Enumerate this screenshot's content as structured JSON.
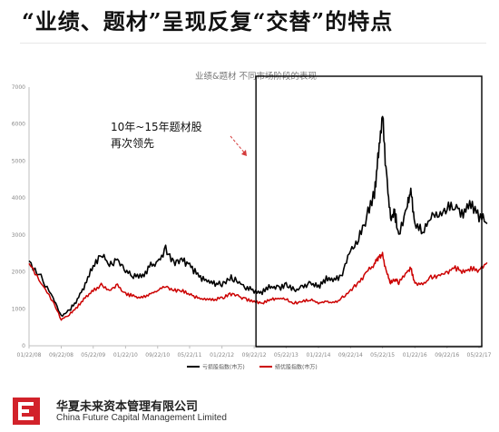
{
  "slide": {
    "title": "“业绩、题材”呈现反复“交替”的特点"
  },
  "chart_data": {
    "type": "line",
    "title": "业绩&题材 不同市场阶段的表现",
    "ylim": [
      0,
      7000
    ],
    "yticks": [
      0,
      1000,
      2000,
      3000,
      4000,
      5000,
      6000,
      7000
    ],
    "xticks": [
      "01/22/08",
      "09/22/08",
      "05/22/09",
      "01/22/10",
      "09/22/10",
      "05/22/11",
      "01/22/12",
      "09/22/12",
      "05/22/13",
      "01/22/14",
      "09/22/14",
      "05/22/15",
      "01/22/16",
      "09/22/16",
      "05/22/17"
    ],
    "x": [
      "01/22/08",
      "04/22/08",
      "07/22/08",
      "09/22/08",
      "11/22/08",
      "01/22/09",
      "03/22/09",
      "05/22/09",
      "07/22/09",
      "09/22/09",
      "11/22/09",
      "01/22/10",
      "03/22/10",
      "05/22/10",
      "07/22/10",
      "09/22/10",
      "11/22/10",
      "01/22/11",
      "03/22/11",
      "05/22/11",
      "07/22/11",
      "09/22/11",
      "11/22/11",
      "01/22/12",
      "03/22/12",
      "05/22/12",
      "07/22/12",
      "09/22/12",
      "11/22/12",
      "01/22/13",
      "03/22/13",
      "05/22/13",
      "07/22/13",
      "09/22/13",
      "11/22/13",
      "01/22/14",
      "03/22/14",
      "05/22/14",
      "07/22/14",
      "09/22/14",
      "11/22/14",
      "01/22/15",
      "03/22/15",
      "04/22/15",
      "05/22/15",
      "06/22/15",
      "07/22/15",
      "08/22/15",
      "09/22/15",
      "11/22/15",
      "12/22/15",
      "01/22/16",
      "03/22/16",
      "05/22/16",
      "07/22/16",
      "09/22/16",
      "11/22/16",
      "01/22/17",
      "03/22/17",
      "05/22/17",
      "07/22/17"
    ],
    "series": [
      {
        "name": "亏损股指数(市万)",
        "color": "#000000",
        "values": [
          2300,
          1850,
          1300,
          800,
          950,
          1250,
          1650,
          2150,
          2500,
          2200,
          2350,
          2000,
          1900,
          1850,
          2150,
          2250,
          2600,
          2250,
          2300,
          2200,
          1900,
          1750,
          1700,
          1650,
          1850,
          1750,
          1550,
          1500,
          1450,
          1600,
          1550,
          1650,
          1500,
          1600,
          1700,
          1600,
          1800,
          1750,
          1950,
          2600,
          2900,
          3500,
          4100,
          5300,
          6300,
          4500,
          3400,
          3600,
          3000,
          3700,
          4200,
          3300,
          3100,
          3500,
          3600,
          3700,
          3800,
          3600,
          3850,
          3500,
          3300
        ]
      },
      {
        "name": "绩优股指数(市万)",
        "color": "#cc0000",
        "values": [
          2250,
          1700,
          1200,
          700,
          850,
          1050,
          1300,
          1500,
          1650,
          1500,
          1650,
          1400,
          1350,
          1300,
          1400,
          1500,
          1600,
          1500,
          1500,
          1400,
          1300,
          1250,
          1250,
          1300,
          1400,
          1350,
          1250,
          1200,
          1150,
          1250,
          1300,
          1250,
          1150,
          1200,
          1250,
          1150,
          1200,
          1150,
          1300,
          1500,
          1700,
          2000,
          2200,
          2400,
          2450,
          2000,
          1700,
          1800,
          1700,
          2000,
          2100,
          1700,
          1650,
          1850,
          1900,
          2000,
          2100,
          2000,
          2100,
          2050,
          2250
        ]
      }
    ],
    "annotation": "10年~15年题材股\n再次领先",
    "grid": false,
    "legend_position": "bottom"
  },
  "footer": {
    "company_cn": "华夏未来资本管理有限公司",
    "company_en": "China Future Capital Management Limited"
  }
}
